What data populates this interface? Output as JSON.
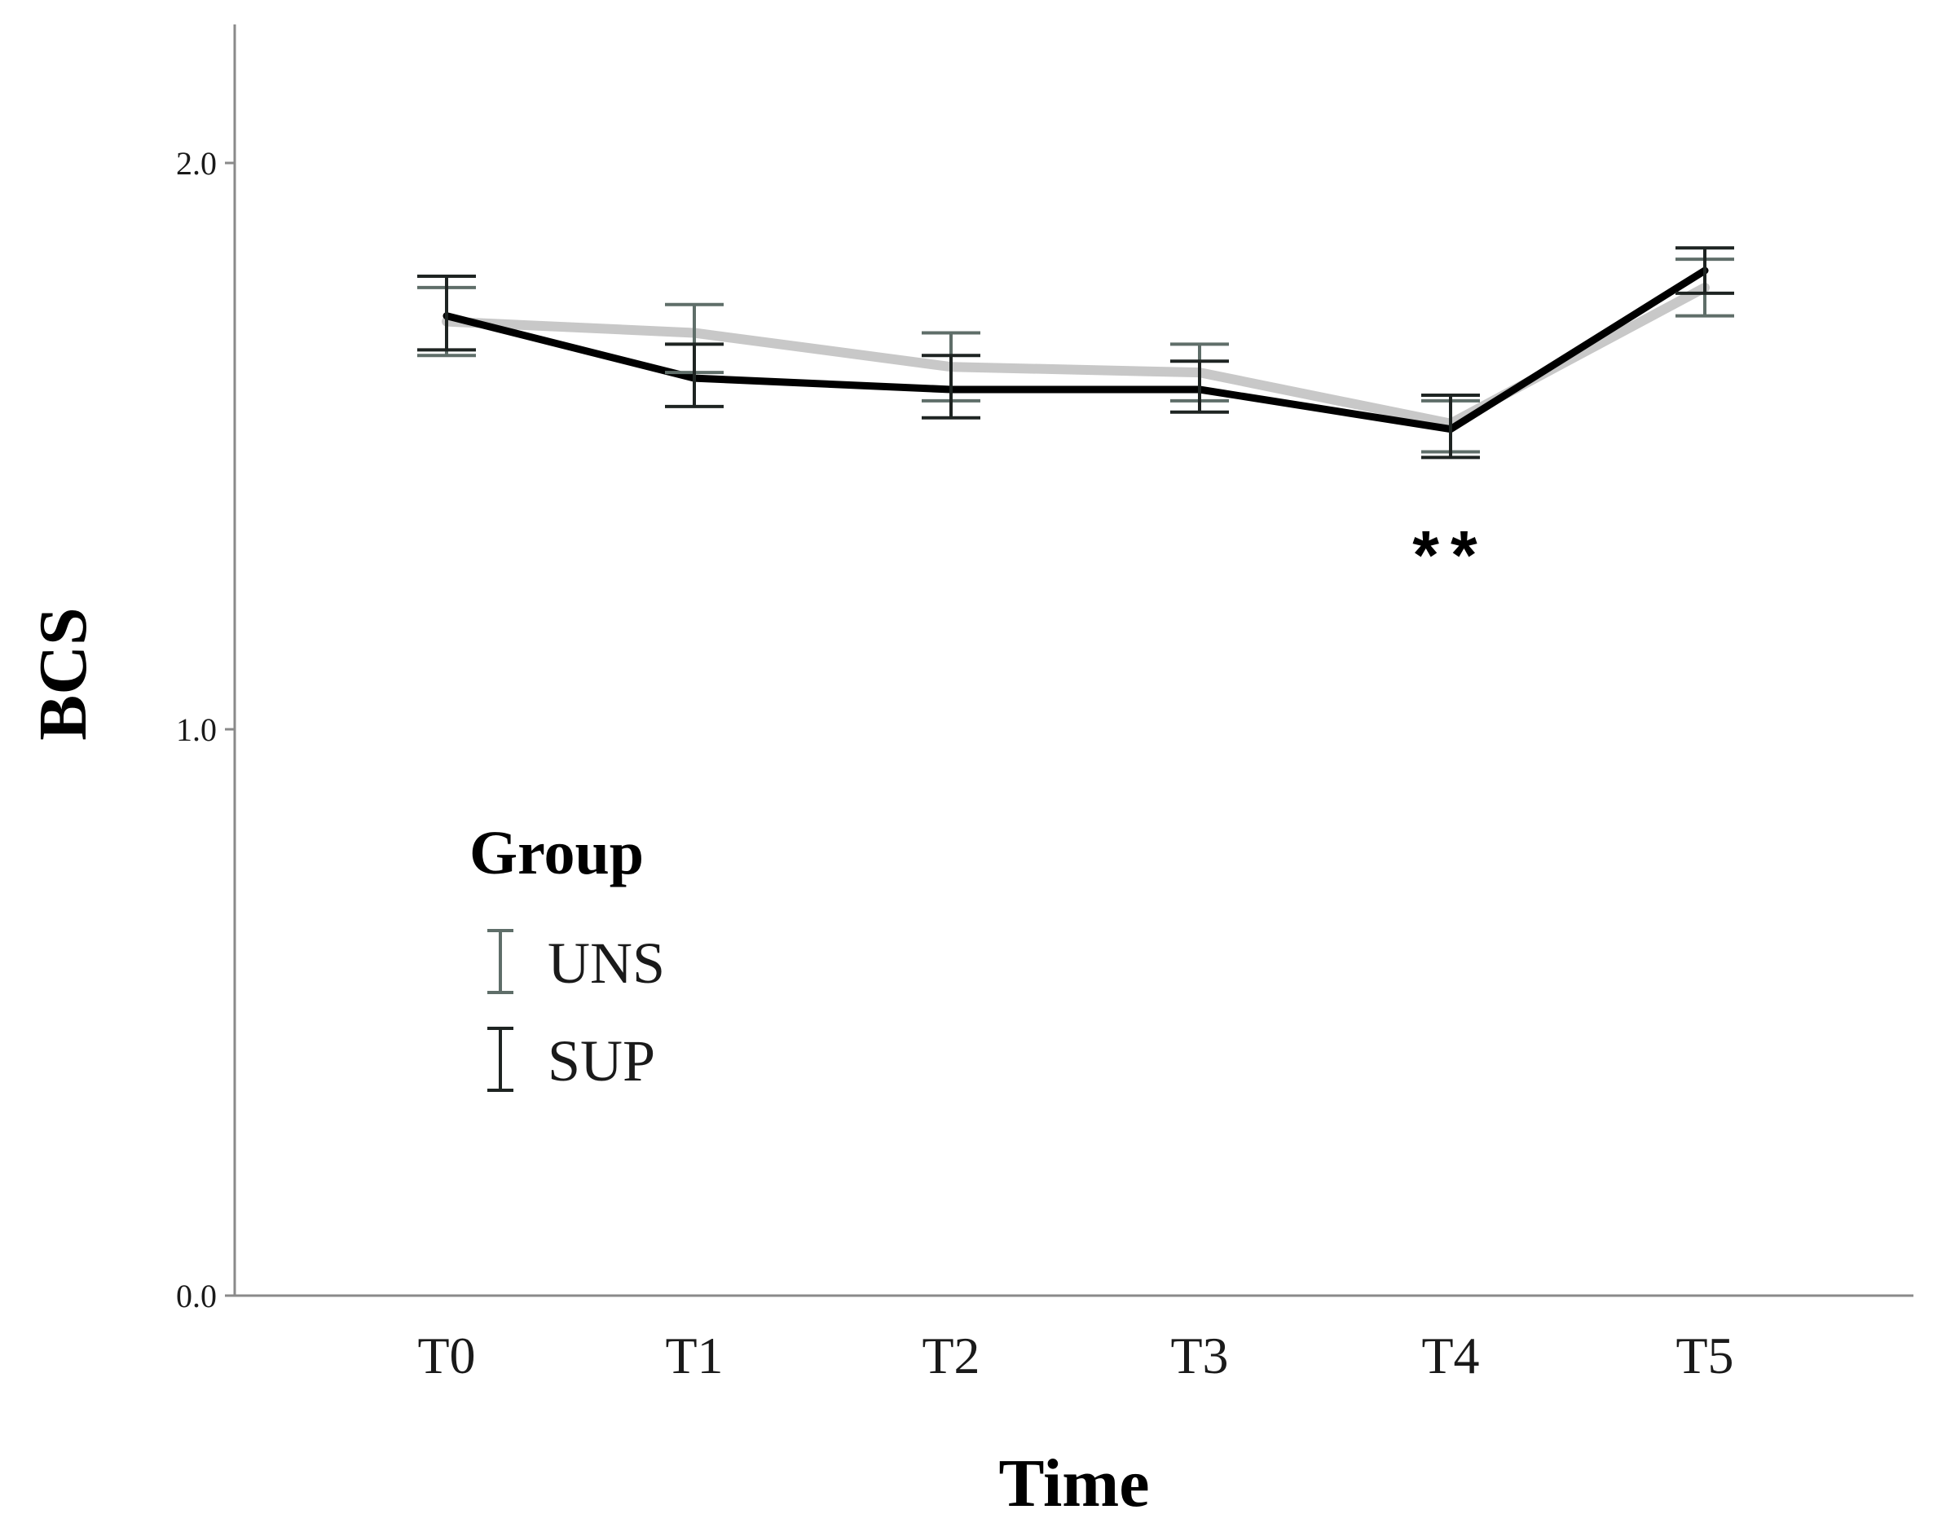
{
  "chart_data": {
    "type": "line",
    "title": "",
    "xlabel": "Time",
    "ylabel": "BCS",
    "categories": [
      "T0",
      "T1",
      "T2",
      "T3",
      "T4",
      "T5"
    ],
    "ylim": [
      0,
      2.2
    ],
    "yticks": [
      0.0,
      1.0,
      2.0
    ],
    "ytick_labels": [
      "0.0",
      "1.0",
      "2.0"
    ],
    "legend_title": "Group",
    "legend_position": "center-left",
    "series": [
      {
        "name": "UNS",
        "color": "#c8c8c8",
        "errorbar_color": "#5f6e69",
        "values": [
          1.72,
          1.7,
          1.64,
          1.63,
          1.54,
          1.78
        ],
        "lower": [
          1.66,
          1.63,
          1.58,
          1.58,
          1.49,
          1.73
        ],
        "upper": [
          1.78,
          1.75,
          1.7,
          1.68,
          1.58,
          1.83
        ]
      },
      {
        "name": "SUP",
        "color": "#000000",
        "errorbar_color": "#1e2422",
        "values": [
          1.73,
          1.62,
          1.6,
          1.6,
          1.53,
          1.81
        ],
        "lower": [
          1.67,
          1.57,
          1.55,
          1.56,
          1.48,
          1.77
        ],
        "upper": [
          1.8,
          1.68,
          1.66,
          1.65,
          1.59,
          1.85
        ]
      }
    ],
    "annotations": [
      {
        "category": "T4",
        "text": "**"
      }
    ]
  }
}
